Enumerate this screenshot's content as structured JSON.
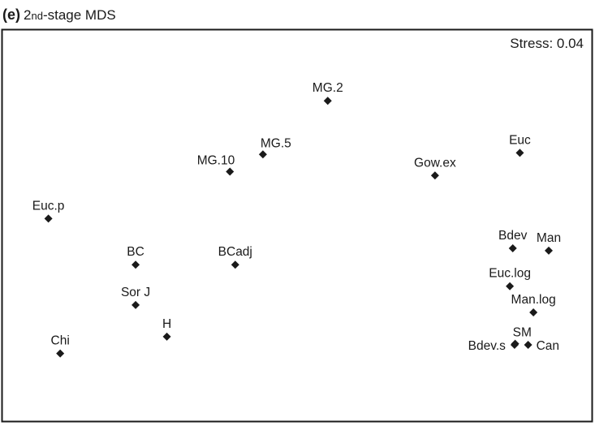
{
  "panel": {
    "letter": "(e)",
    "title_num": "2",
    "title_suffix": "nd",
    "title_rest": "-stage MDS"
  },
  "chart_data": {
    "type": "scatter",
    "title": "(e) 2nd-stage MDS",
    "annotation": "Stress: 0.04",
    "xlabel": "",
    "ylabel": "",
    "xlim": [
      0,
      100
    ],
    "ylim": [
      0,
      100
    ],
    "grid": false,
    "legend": "none",
    "axis_ticks": false,
    "marker": "diamond",
    "marker_color": "#1a1a1a",
    "points": [
      {
        "label": "MG.2",
        "x": 55.2,
        "y": 81.9,
        "label_pos": "above"
      },
      {
        "label": "MG.5",
        "x": 44.2,
        "y": 68.2,
        "label_pos": "above-right"
      },
      {
        "label": "MG.10",
        "x": 38.6,
        "y": 63.8,
        "label_pos": "above-left"
      },
      {
        "label": "Euc",
        "x": 87.8,
        "y": 68.6,
        "label_pos": "above"
      },
      {
        "label": "Gow.ex",
        "x": 73.4,
        "y": 62.8,
        "label_pos": "above"
      },
      {
        "label": "Euc.p",
        "x": 7.8,
        "y": 51.8,
        "label_pos": "above"
      },
      {
        "label": "BC",
        "x": 22.6,
        "y": 40.0,
        "label_pos": "above"
      },
      {
        "label": "BCadj",
        "x": 39.5,
        "y": 40.0,
        "label_pos": "above"
      },
      {
        "label": "Bdev",
        "x": 86.6,
        "y": 44.2,
        "label_pos": "above"
      },
      {
        "label": "Man",
        "x": 92.7,
        "y": 43.6,
        "label_pos": "above"
      },
      {
        "label": "Euc.log",
        "x": 86.1,
        "y": 34.5,
        "label_pos": "above"
      },
      {
        "label": "Sor_J",
        "x": 22.6,
        "y": 29.7,
        "label_pos": "above"
      },
      {
        "label": "Man.log",
        "x": 90.1,
        "y": 27.8,
        "label_pos": "above"
      },
      {
        "label": "H",
        "x": 27.9,
        "y": 21.6,
        "label_pos": "above"
      },
      {
        "label": "Chi",
        "x": 9.8,
        "y": 17.3,
        "label_pos": "above"
      },
      {
        "label": "SM",
        "x": 87.0,
        "y": 19.8,
        "label_pos": "above-right"
      },
      {
        "label": "Bdev.s",
        "x": 86.9,
        "y": 19.5,
        "label_pos": "left"
      },
      {
        "label": "Can",
        "x": 89.2,
        "y": 19.5,
        "label_pos": "right"
      }
    ]
  }
}
